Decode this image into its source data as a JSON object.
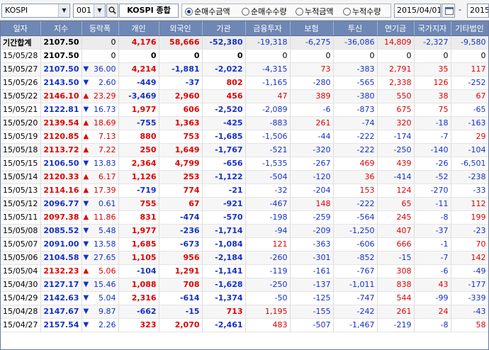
{
  "toolbar": {
    "market": "KOSPI",
    "code": "001",
    "index_name": "KOSPI 종합",
    "radios": [
      {
        "label": "순매수금액",
        "selected": true
      },
      {
        "label": "순매수수량",
        "selected": false
      },
      {
        "label": "누적금액",
        "selected": false
      },
      {
        "label": "누적수량",
        "selected": false
      }
    ],
    "date_from": "2015/04/01",
    "date_to": "2015",
    "dash": "-"
  },
  "columns": [
    "일자",
    "지수",
    "등락폭",
    "개인",
    "외국인",
    "기관",
    "금융투자",
    "보험",
    "투신",
    "연기금",
    "국가지자",
    "기타법인"
  ],
  "colors": {
    "up": "#e00000",
    "down": "#1530c8",
    "header": "#6e87b4"
  },
  "rows": [
    {
      "date": "기간합계",
      "index": "2107.50",
      "dir": "",
      "change": "0",
      "vals": [
        "4,176",
        "58,666",
        "-52,380",
        "-19,318",
        "-6,275",
        "-36,086",
        "14,809",
        "-2,327",
        "-9,580"
      ],
      "total": true
    },
    {
      "date": "15/05/28",
      "index": "2107.50",
      "dir": "",
      "change": "0",
      "vals": [
        "0",
        "0",
        "0",
        "0",
        "0",
        "0",
        "0",
        "0",
        "0"
      ]
    },
    {
      "date": "15/05/27",
      "index": "2107.50",
      "dir": "down",
      "change": "36.00",
      "vals": [
        "4,214",
        "-1,881",
        "-2,022",
        "-4,315",
        "73",
        "-383",
        "2,791",
        "35",
        "117"
      ]
    },
    {
      "date": "15/05/26",
      "index": "2143.50",
      "dir": "down",
      "change": "2.60",
      "vals": [
        "-449",
        "-37",
        "802",
        "-1,165",
        "-280",
        "-565",
        "2,338",
        "126",
        "-252"
      ]
    },
    {
      "date": "15/05/22",
      "index": "2146.10",
      "dir": "up",
      "change": "23.29",
      "vals": [
        "-3,469",
        "2,960",
        "456",
        "47",
        "389",
        "-380",
        "550",
        "38",
        "67"
      ]
    },
    {
      "date": "15/05/21",
      "index": "2122.81",
      "dir": "down",
      "change": "16.73",
      "vals": [
        "1,977",
        "606",
        "-2,520",
        "-2,089",
        "-6",
        "-873",
        "675",
        "75",
        "-65"
      ]
    },
    {
      "date": "15/05/20",
      "index": "2139.54",
      "dir": "up",
      "change": "18.69",
      "vals": [
        "-755",
        "1,363",
        "-425",
        "-883",
        "261",
        "-74",
        "320",
        "-18",
        "-163"
      ]
    },
    {
      "date": "15/05/19",
      "index": "2120.85",
      "dir": "up",
      "change": "7.13",
      "vals": [
        "880",
        "753",
        "-1,685",
        "-1,506",
        "-44",
        "-222",
        "-174",
        "-7",
        "29"
      ]
    },
    {
      "date": "15/05/18",
      "index": "2113.72",
      "dir": "up",
      "change": "7.22",
      "vals": [
        "250",
        "1,649",
        "-1,767",
        "-521",
        "-320",
        "-222",
        "-250",
        "-140",
        "-104"
      ]
    },
    {
      "date": "15/05/15",
      "index": "2106.50",
      "dir": "down",
      "change": "13.83",
      "vals": [
        "2,364",
        "4,799",
        "-656",
        "-1,535",
        "-267",
        "469",
        "439",
        "-26",
        "-6,501"
      ]
    },
    {
      "date": "15/05/14",
      "index": "2120.33",
      "dir": "up",
      "change": "6.17",
      "vals": [
        "1,126",
        "253",
        "-1,122",
        "-504",
        "-120",
        "36",
        "-414",
        "-52",
        "-238"
      ]
    },
    {
      "date": "15/05/13",
      "index": "2114.16",
      "dir": "up",
      "change": "17.39",
      "vals": [
        "-719",
        "774",
        "-21",
        "-32",
        "-204",
        "153",
        "124",
        "-270",
        "-33"
      ]
    },
    {
      "date": "15/05/12",
      "index": "2096.77",
      "dir": "down",
      "change": "0.61",
      "vals": [
        "755",
        "67",
        "-921",
        "-467",
        "148",
        "-222",
        "65",
        "-11",
        "112"
      ]
    },
    {
      "date": "15/05/11",
      "index": "2097.38",
      "dir": "up",
      "change": "11.86",
      "vals": [
        "831",
        "-474",
        "-570",
        "-198",
        "-259",
        "-564",
        "245",
        "-8",
        "199"
      ]
    },
    {
      "date": "15/05/08",
      "index": "2085.52",
      "dir": "down",
      "change": "5.48",
      "vals": [
        "1,977",
        "-236",
        "-1,714",
        "-94",
        "-209",
        "-1,250",
        "407",
        "-37",
        "-23"
      ]
    },
    {
      "date": "15/05/07",
      "index": "2091.00",
      "dir": "down",
      "change": "13.58",
      "vals": [
        "1,685",
        "-673",
        "-1,084",
        "121",
        "-363",
        "-606",
        "666",
        "-1",
        "70"
      ]
    },
    {
      "date": "15/05/06",
      "index": "2104.58",
      "dir": "down",
      "change": "27.65",
      "vals": [
        "1,105",
        "956",
        "-2,184",
        "-260",
        "-301",
        "-852",
        "-15",
        "-7",
        "142"
      ]
    },
    {
      "date": "15/05/04",
      "index": "2132.23",
      "dir": "up",
      "change": "5.06",
      "vals": [
        "-104",
        "1,291",
        "-1,141",
        "-119",
        "-161",
        "-767",
        "308",
        "-6",
        "-49"
      ]
    },
    {
      "date": "15/04/30",
      "index": "2127.17",
      "dir": "down",
      "change": "15.46",
      "vals": [
        "1,088",
        "708",
        "-1,628",
        "-250",
        "-137",
        "-1,011",
        "838",
        "43",
        "-177"
      ]
    },
    {
      "date": "15/04/29",
      "index": "2142.63",
      "dir": "down",
      "change": "5.04",
      "vals": [
        "2,316",
        "-614",
        "-1,374",
        "-50",
        "-125",
        "-747",
        "544",
        "-99",
        "-339"
      ]
    },
    {
      "date": "15/04/28",
      "index": "2147.67",
      "dir": "down",
      "change": "9.87",
      "vals": [
        "-662",
        "-15",
        "713",
        "1,195",
        "-155",
        "-242",
        "261",
        "24",
        "-43"
      ]
    },
    {
      "date": "15/04/27",
      "index": "2157.54",
      "dir": "down",
      "change": "2.26",
      "vals": [
        "323",
        "2,070",
        "-2,461",
        "483",
        "-507",
        "-1,467",
        "-219",
        "-8",
        "58"
      ]
    }
  ]
}
